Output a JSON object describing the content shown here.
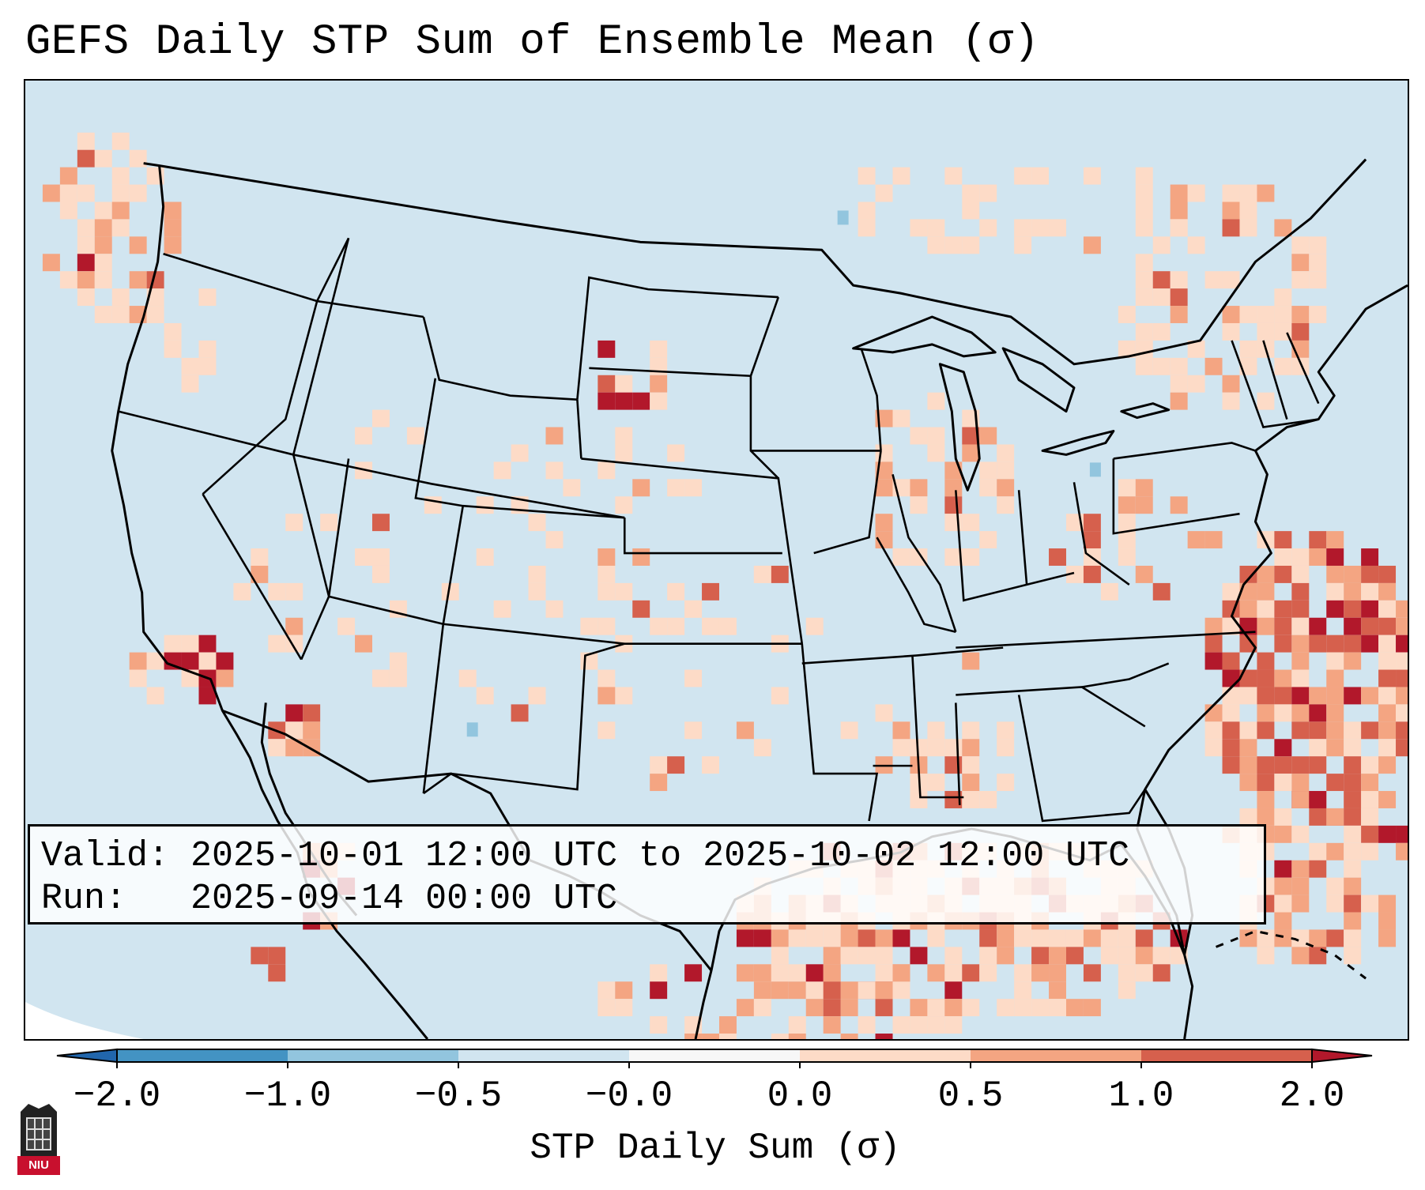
{
  "title": "GEFS Daily STP Sum of Ensemble Mean (σ)",
  "info": {
    "valid_line": "Valid: 2025-10-01 12:00 UTC to 2025-10-02 12:00 UTC",
    "run_line": "Run:   2025-09-14 00:00 UTC"
  },
  "colorbar": {
    "label": "STP Daily Sum (σ)",
    "ticks": [
      "−2.0",
      "−1.0",
      "−0.5",
      "−0.0",
      "0.0",
      "0.5",
      "1.0",
      "2.0"
    ],
    "segments": [
      {
        "range": "-2.0 to -1.0",
        "color": "#4393c3"
      },
      {
        "range": "-1.0 to -0.5",
        "color": "#92c5de"
      },
      {
        "range": "-0.5 to -0.0",
        "color": "#d1e5f0"
      },
      {
        "range": "-0.0 to 0.0",
        "color": "#f7f7f7"
      },
      {
        "range": "0.0 to 0.5",
        "color": "#fddbc7"
      },
      {
        "range": "0.5 to 1.0",
        "color": "#f4a582"
      },
      {
        "range": "1.0 to 2.0",
        "color": "#d6604d"
      }
    ],
    "under_color": "#2166ac",
    "over_color": "#b2182b"
  },
  "map": {
    "background_color": "#d1e5f0",
    "category_colors": {
      "low": "#fddbc7",
      "mid": "#f4a582",
      "high": "#d6604d",
      "extreme": "#b2182b",
      "neg": "#92c5de"
    }
  },
  "logo": {
    "text": "NIU"
  }
}
